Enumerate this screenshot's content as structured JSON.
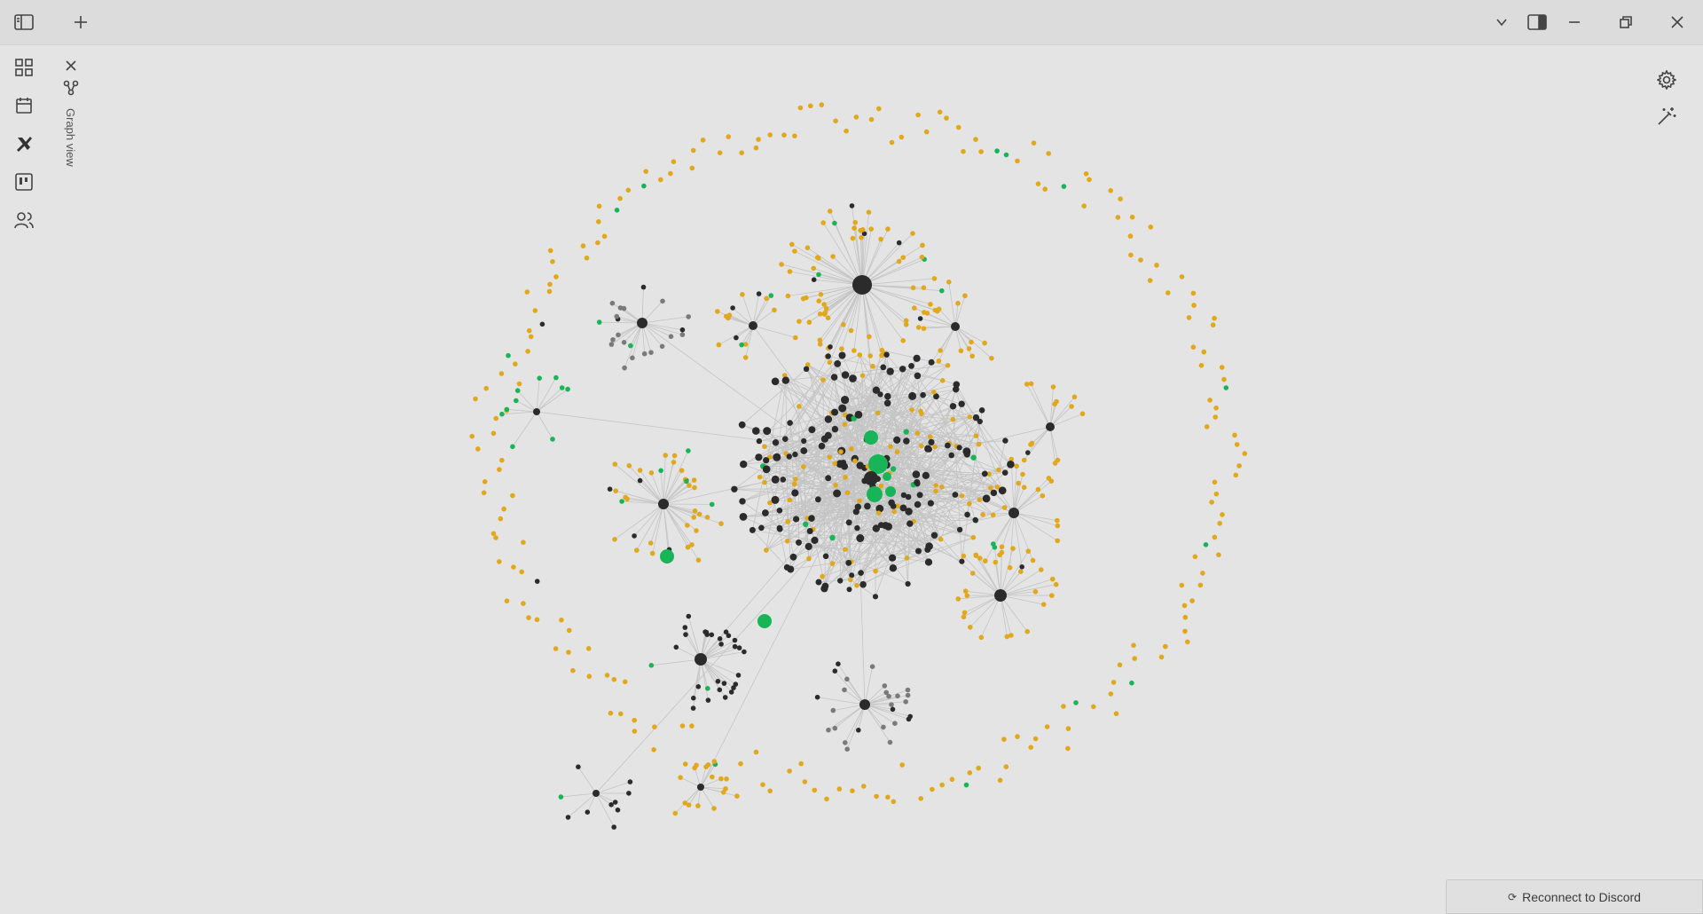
{
  "titlebar": {
    "sidebar_toggle_icon": "sidebar-left-icon",
    "new_tab_icon": "plus-icon",
    "tab_list_icon": "chevron-down-icon",
    "right_sidebar_icon": "sidebar-right-icon",
    "minimize_icon": "minimize-icon",
    "restore_icon": "restore-icon",
    "close_icon": "close-icon"
  },
  "ribbon": {
    "items": [
      {
        "icon": "dashboard-icon"
      },
      {
        "icon": "calendar-icon"
      },
      {
        "icon": "excalidraw-icon"
      },
      {
        "icon": "kanban-icon"
      },
      {
        "icon": "users-icon"
      }
    ]
  },
  "tab": {
    "label": "Graph view",
    "icon": "graph-icon",
    "close_icon": "close-icon"
  },
  "graph_controls": {
    "settings_icon": "gear-icon",
    "animate_icon": "magic-wand-icon"
  },
  "status_bar": {
    "discord_icon": "refresh-icon",
    "discord_label": "Reconnect to Discord"
  },
  "colors": {
    "background": "#e4e4e4",
    "attachment_node": "#e0a81a",
    "note_node": "#2b2b2b",
    "tag_node": "#18b458",
    "unresolved_node": "#7a7a7a",
    "edge": "#c4c4c4"
  }
}
